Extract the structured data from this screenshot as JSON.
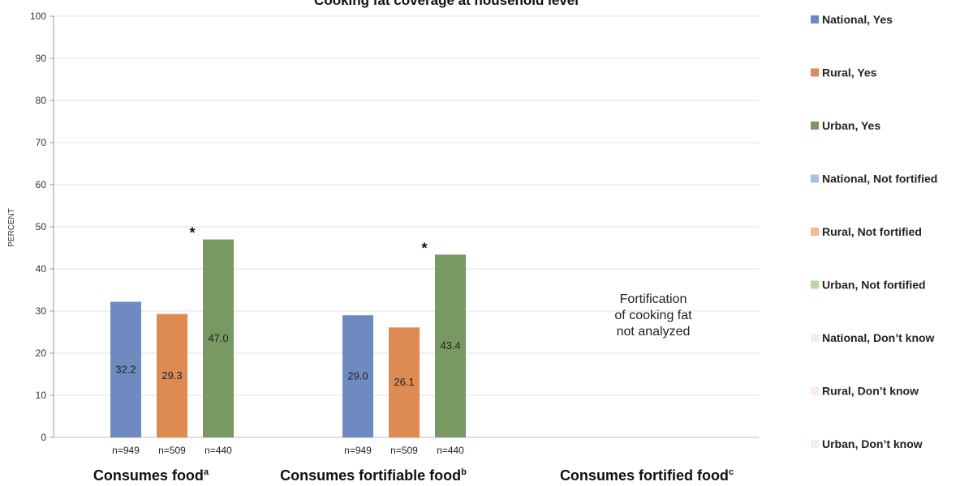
{
  "chart_data": {
    "type": "bar",
    "title": "Cooking fat coverage at household level",
    "ylabel": "PERCENT",
    "ylim": [
      0,
      100
    ],
    "yticks": [
      0,
      10,
      20,
      30,
      40,
      50,
      60,
      70,
      80,
      90,
      100
    ],
    "grid": true,
    "legend_position": "right",
    "groups": [
      {
        "label": "Consumes food",
        "superscript": "a",
        "bars": [
          {
            "series": "National, Yes",
            "value": 32.2,
            "n": "n=949"
          },
          {
            "series": "Rural, Yes",
            "value": 29.3,
            "n": "n=509"
          },
          {
            "series": "Urban, Yes",
            "value": 47.0,
            "n": "n=440",
            "marker": "*"
          }
        ]
      },
      {
        "label": "Consumes fortifiable food",
        "superscript": "b",
        "bars": [
          {
            "series": "National, Yes",
            "value": 29.0,
            "n": "n=949"
          },
          {
            "series": "Rural, Yes",
            "value": 26.1,
            "n": "n=509"
          },
          {
            "series": "Urban, Yes",
            "value": 43.4,
            "n": "n=440",
            "marker": "*"
          }
        ]
      },
      {
        "label": "Consumes fortified food",
        "superscript": "c",
        "bars": [],
        "note_lines": [
          "Fortification",
          "of cooking fat",
          "not analyzed"
        ]
      }
    ],
    "series": [
      {
        "name": "National, Yes",
        "color": "#6f8ac0",
        "style": "solid"
      },
      {
        "name": "Rural, Yes",
        "color": "#dd8a53",
        "style": "solid"
      },
      {
        "name": "Urban, Yes",
        "color": "#789a62",
        "style": "solid"
      },
      {
        "name": "National, Not fortified",
        "color": "#a9bfe3",
        "style": "solid"
      },
      {
        "name": "Rural, Not fortified",
        "color": "#f3b994",
        "style": "solid"
      },
      {
        "name": "Urban, Not fortified",
        "color": "#b7d7a6",
        "style": "solid"
      },
      {
        "name": "National, Don’t know",
        "color": "#a9bfe3",
        "style": "hatched"
      },
      {
        "name": "Rural, Don’t know",
        "color": "#f3b994",
        "style": "hatched"
      },
      {
        "name": "Urban, Don’t know",
        "color": "#b7d7a6",
        "style": "hatched"
      }
    ]
  }
}
